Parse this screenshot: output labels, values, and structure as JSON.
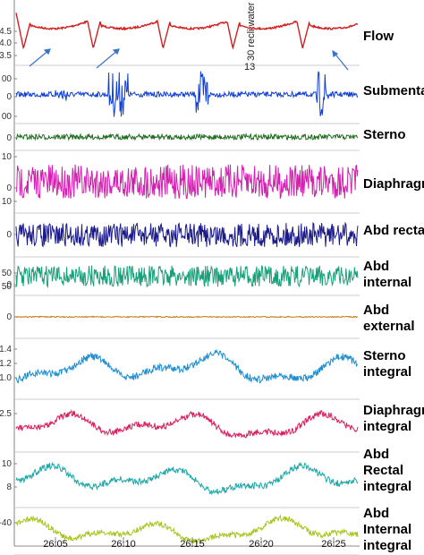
{
  "chart_data": {
    "type": "line",
    "x_ticks": [
      "26:05",
      "26:10",
      "26:15",
      "26:20",
      "26:25"
    ],
    "annotations": {
      "vertical_text": "30 recli water",
      "number": "13"
    },
    "panels": [
      {
        "name": "Flow",
        "label_lines": [
          "Flow"
        ],
        "color": "#d11f1f",
        "ticks": [
          "4.5",
          "4.0",
          "3.5"
        ],
        "shape": "flow"
      },
      {
        "name": "Submental",
        "label_lines": [
          "Submental"
        ],
        "color": "#1040d8",
        "ticks": [
          "00",
          "0",
          "00"
        ],
        "shape": "bursts"
      },
      {
        "name": "Sterno",
        "label_lines": [
          "Sterno"
        ],
        "color": "#1d6b1d",
        "ticks": [
          "0"
        ],
        "shape": "thin_noise"
      },
      {
        "name": "Diaphragm",
        "label_lines": [
          "Diaphragm"
        ],
        "color": "#d41fb0",
        "ticks": [
          "10",
          "0",
          "10"
        ],
        "shape": "noise"
      },
      {
        "name": "Abd rectal",
        "label_lines": [
          "Abd rectal"
        ],
        "color": "#1a1a8a",
        "ticks": [
          "0"
        ],
        "shape": "noise"
      },
      {
        "name": "Abd internal",
        "label_lines": [
          "Abd",
          "internal"
        ],
        "color": "#19a07a",
        "ticks": [
          "50",
          "0",
          "50"
        ],
        "shape": "noise"
      },
      {
        "name": "Abd external",
        "label_lines": [
          "Abd",
          "external"
        ],
        "color": "#c27a14",
        "ticks": [
          "0"
        ],
        "shape": "flat"
      },
      {
        "name": "Sterno integral",
        "label_lines": [
          "Sterno",
          "integral"
        ],
        "color": "#1f8fd0",
        "ticks": [
          "1.4",
          "1.2",
          "1.0"
        ],
        "shape": "integral"
      },
      {
        "name": "Diaphragm integral",
        "label_lines": [
          "Diaphragm",
          "integral"
        ],
        "color": "#d81f5e",
        "ticks": [
          "2.5"
        ],
        "shape": "integral"
      },
      {
        "name": "Abd Rectal integral",
        "label_lines": [
          "Abd",
          "Rectal",
          "integral"
        ],
        "color": "#1fa7a7",
        "ticks": [
          "10",
          "8"
        ],
        "shape": "integral"
      },
      {
        "name": "Abd Internal integral",
        "label_lines": [
          "Abd",
          "Internal",
          "integral"
        ],
        "color": "#a8c21a",
        "ticks": [
          "-40"
        ],
        "shape": "integral"
      }
    ]
  }
}
